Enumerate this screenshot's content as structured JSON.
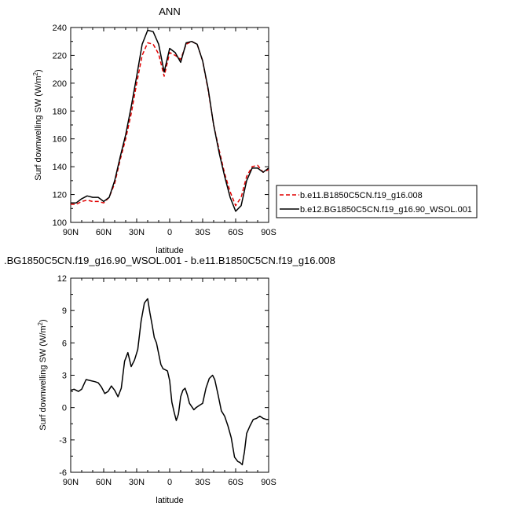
{
  "figure": {
    "legend_entries": [
      {
        "label": "b.e11.B1850C5CN.f19_g16.008",
        "color": "#e00000",
        "dash": "dashed"
      },
      {
        "label": "b.e12.BG1850C5CN.f19_g16.90_WSOL.001",
        "color": "#000000",
        "dash": "solid"
      }
    ]
  },
  "chart_data": [
    {
      "type": "line",
      "title": "ANN",
      "xlabel": "latitude",
      "ylabel": "Surf downwelling SW (W/m²)",
      "ylabel_main": "Surf downwelling SW (W/m",
      "ylabel_sup": "2",
      "ylabel_close": ")",
      "xlim": [
        90,
        -90
      ],
      "ylim": [
        100,
        240
      ],
      "xticks": [
        90,
        60,
        30,
        0,
        -30,
        -60,
        -90
      ],
      "xtick_labels": [
        "90N",
        "60N",
        "30N",
        "0",
        "30S",
        "60S",
        "90S"
      ],
      "yticks": [
        100,
        120,
        140,
        160,
        180,
        200,
        220,
        240
      ],
      "ytick_labels": [
        "100",
        "120",
        "140",
        "160",
        "180",
        "200",
        "220",
        "240"
      ],
      "legend_position": "right, outside plot",
      "series": [
        {
          "name": "b.e11.B1850C5CN.f19_g16.008",
          "color": "#e00000",
          "style": "dashed",
          "x": [
            90,
            85,
            80,
            75,
            70,
            65,
            60,
            55,
            50,
            45,
            40,
            35,
            30,
            25,
            20,
            15,
            10,
            5,
            0,
            -5,
            -10,
            -15,
            -20,
            -25,
            -30,
            -35,
            -40,
            -45,
            -50,
            -55,
            -60,
            -65,
            -70,
            -75,
            -80,
            -85,
            -90
          ],
          "y": [
            113,
            113,
            115,
            116,
            115,
            115,
            114,
            118,
            128,
            145,
            160,
            178,
            200,
            220,
            229,
            228,
            221,
            205,
            222,
            220,
            217,
            228,
            230,
            228,
            216,
            195,
            170,
            152,
            135,
            122,
            112,
            118,
            133,
            140,
            141,
            136,
            138
          ]
        },
        {
          "name": "b.e12.BG1850C5CN.f19_g16.90_WSOL.001",
          "color": "#000000",
          "style": "solid",
          "x": [
            90,
            85,
            80,
            75,
            70,
            65,
            60,
            55,
            50,
            45,
            40,
            35,
            30,
            25,
            20,
            15,
            10,
            5,
            0,
            -5,
            -10,
            -15,
            -20,
            -25,
            -30,
            -35,
            -40,
            -45,
            -50,
            -55,
            -60,
            -65,
            -70,
            -75,
            -80,
            -85,
            -90
          ],
          "y": [
            114,
            114,
            117,
            119,
            118,
            118,
            115,
            118,
            130,
            147,
            163,
            183,
            205,
            228,
            238,
            237,
            228,
            208,
            225,
            222,
            215,
            229,
            230,
            228,
            216,
            196,
            170,
            150,
            133,
            118,
            108,
            112,
            130,
            139,
            139,
            136,
            139
          ]
        }
      ]
    },
    {
      "type": "line",
      "title": ".BG1850C5CN.f19_g16.90_WSOL.001 - b.e11.B1850C5CN.f19_g16.008",
      "xlabel": "latitude",
      "ylabel": "Surf downwelling SW (W/m²)",
      "ylabel_main": "Surf downwelling SW (W/m",
      "ylabel_sup": "2",
      "ylabel_close": ")",
      "xlim": [
        90,
        -90
      ],
      "ylim": [
        -6,
        12
      ],
      "xticks": [
        90,
        60,
        30,
        0,
        -30,
        -60,
        -90
      ],
      "xtick_labels": [
        "90N",
        "60N",
        "30N",
        "0",
        "30S",
        "60S",
        "90S"
      ],
      "yticks": [
        -6,
        -3,
        0,
        3,
        6,
        9,
        12
      ],
      "ytick_labels": [
        "-6",
        "-3",
        "0",
        "3",
        "6",
        "9",
        "12"
      ],
      "series": [
        {
          "color": "#000000",
          "style": "solid",
          "x": [
            90,
            87,
            83,
            80,
            76,
            72,
            68,
            65,
            62,
            59,
            56,
            53,
            50,
            47,
            44,
            41,
            38,
            35,
            32,
            29,
            26,
            23,
            20,
            18,
            16,
            14,
            12,
            10,
            8,
            6,
            4,
            2,
            0,
            -2,
            -4,
            -6,
            -8,
            -10,
            -12,
            -14,
            -16,
            -18,
            -20,
            -22,
            -24,
            -27,
            -30,
            -33,
            -36,
            -39,
            -41,
            -44,
            -47,
            -50,
            -53,
            -56,
            -59,
            -62,
            -64,
            -66,
            -68,
            -70,
            -73,
            -76,
            -79,
            -82,
            -85,
            -88,
            -90
          ],
          "y": [
            1.6,
            1.7,
            1.5,
            1.7,
            2.6,
            2.5,
            2.4,
            2.3,
            1.9,
            1.3,
            1.5,
            2.0,
            1.6,
            1.0,
            1.8,
            4.3,
            5.1,
            3.8,
            4.4,
            5.4,
            8.0,
            9.7,
            10.1,
            8.8,
            7.7,
            6.5,
            6.0,
            5.0,
            4.0,
            3.6,
            3.5,
            3.4,
            2.5,
            0.5,
            -0.4,
            -1.2,
            -0.6,
            1.0,
            1.6,
            1.8,
            1.2,
            0.4,
            0.1,
            -0.2,
            0.0,
            0.2,
            0.4,
            1.8,
            2.7,
            3.0,
            2.6,
            1.2,
            -0.3,
            -0.8,
            -1.7,
            -2.8,
            -4.6,
            -5.0,
            -5.1,
            -5.3,
            -4.1,
            -2.4,
            -1.7,
            -1.1,
            -1.0,
            -0.8,
            -1.0,
            -1.1,
            -1.1
          ]
        }
      ]
    }
  ]
}
